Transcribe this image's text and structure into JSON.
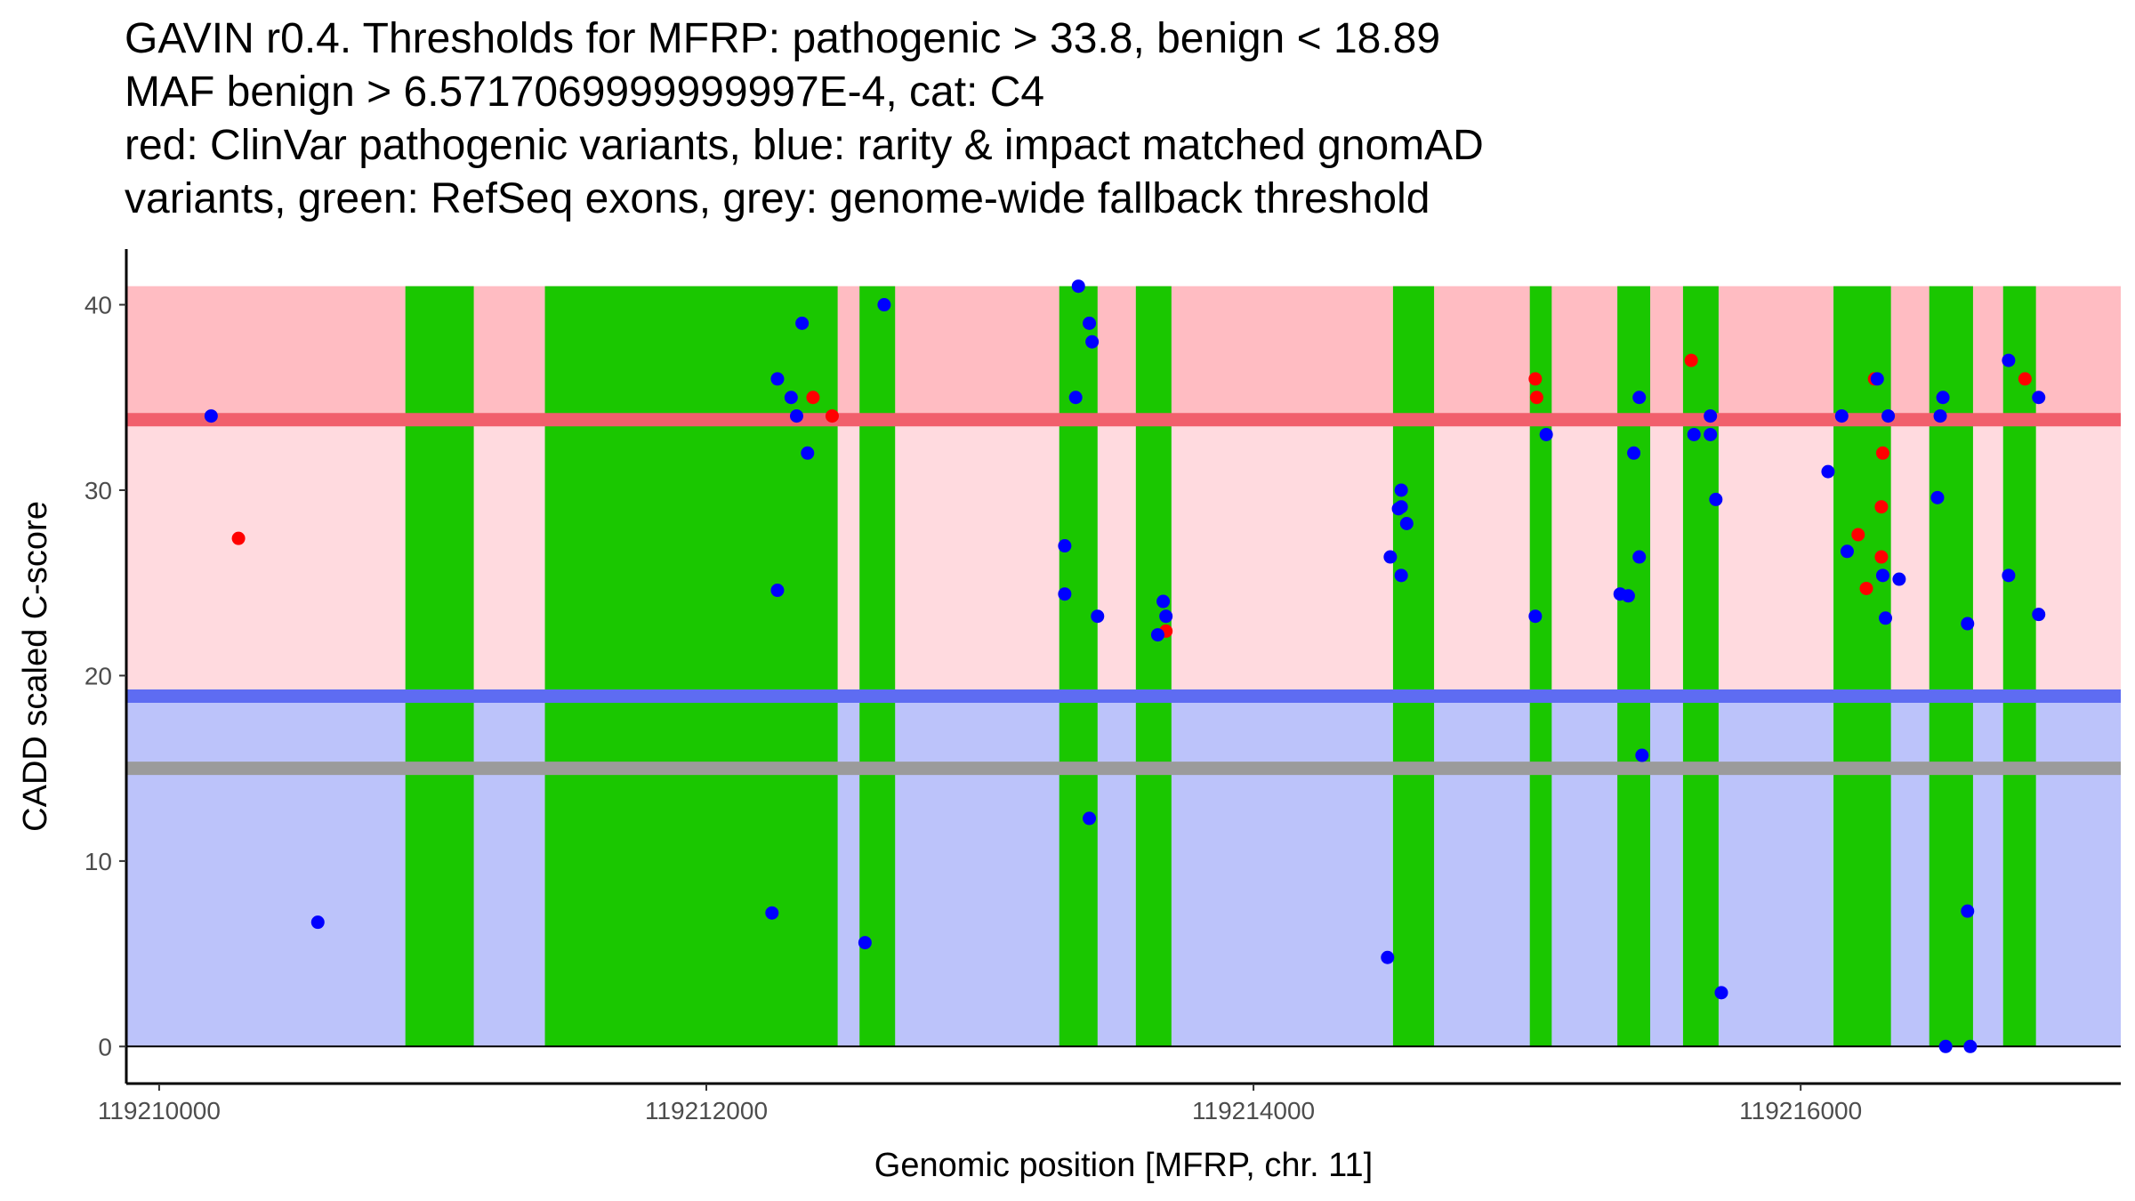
{
  "chart_data": {
    "type": "scatter",
    "title_lines": [
      "GAVIN r0.4. Thresholds for MFRP: pathogenic > 33.8, benign < 18.89",
      "MAF benign > 6.5717069999999997E-4, cat: C4",
      "red: ClinVar pathogenic variants, blue: rarity & impact matched gnomAD",
      "variants, green: RefSeq exons, grey: genome-wide fallback threshold"
    ],
    "xlabel": "Genomic position [MFRP, chr. 11]",
    "ylabel": "CADD scaled C-score",
    "xlim": [
      119209880,
      119217170
    ],
    "ylim": [
      -2,
      43
    ],
    "xticks": [
      119210000,
      119212000,
      119214000,
      119216000
    ],
    "yticks": [
      0,
      10,
      20,
      30,
      40
    ],
    "colors": {
      "pathogenic_region": "#ffbcc2",
      "middle_region": "#ffdadf",
      "benign_region": "#bcc3fa",
      "pathogenic_line": "#f15f6c",
      "benign_line": "#5e6cf2",
      "fallback_line": "#9b9b9b",
      "exon": "#1ac700",
      "clinvar_point": "#ff0000",
      "gnomad_point": "#0000ff"
    },
    "regions": {
      "y_top": 41,
      "pathogenic_threshold": 33.8,
      "benign_threshold": 18.89,
      "fallback_threshold": 15
    },
    "exons": [
      [
        119210900,
        119211150
      ],
      [
        119211410,
        119212480
      ],
      [
        119212560,
        119212690
      ],
      [
        119213290,
        119213430
      ],
      [
        119213570,
        119213700
      ],
      [
        119214510,
        119214660
      ],
      [
        119215010,
        119215090
      ],
      [
        119215330,
        119215450
      ],
      [
        119215570,
        119215700
      ],
      [
        119216120,
        119216330
      ],
      [
        119216470,
        119216630
      ],
      [
        119216740,
        119216860
      ]
    ],
    "series": [
      {
        "name": "ClinVar pathogenic variants",
        "color": "#ff0000",
        "points": [
          [
            119210290,
            27.4
          ],
          [
            119212390,
            35.0
          ],
          [
            119212460,
            34.0
          ],
          [
            119213680,
            22.4
          ],
          [
            119215030,
            36.0
          ],
          [
            119215035,
            35.0
          ],
          [
            119215600,
            37.0
          ],
          [
            119216210,
            27.6
          ],
          [
            119216240,
            24.7
          ],
          [
            119216270,
            36.0
          ],
          [
            119216300,
            32.0
          ],
          [
            119216295,
            29.1
          ],
          [
            119216295,
            26.4
          ],
          [
            119216820,
            36.0
          ]
        ]
      },
      {
        "name": "rarity & impact matched gnomAD variants",
        "color": "#0000ff",
        "points": [
          [
            119210190,
            34.0
          ],
          [
            119210580,
            6.7
          ],
          [
            119212240,
            7.2
          ],
          [
            119212260,
            36.0
          ],
          [
            119212260,
            24.6
          ],
          [
            119212310,
            35.0
          ],
          [
            119212330,
            34.0
          ],
          [
            119212350,
            39.0
          ],
          [
            119212370,
            32.0
          ],
          [
            119212580,
            5.6
          ],
          [
            119212650,
            40.0
          ],
          [
            119213310,
            27.0
          ],
          [
            119213310,
            24.4
          ],
          [
            119213350,
            35.0
          ],
          [
            119213360,
            41.0
          ],
          [
            119213400,
            39.0
          ],
          [
            119213410,
            38.0
          ],
          [
            119213400,
            12.3
          ],
          [
            119213430,
            23.2
          ],
          [
            119213650,
            22.2
          ],
          [
            119213670,
            24.0
          ],
          [
            119213680,
            23.2
          ],
          [
            119214490,
            4.8
          ],
          [
            119214500,
            26.4
          ],
          [
            119214530,
            29.0
          ],
          [
            119214540,
            30.0
          ],
          [
            119214540,
            25.4
          ],
          [
            119214560,
            28.2
          ],
          [
            119214540,
            29.1
          ],
          [
            119215030,
            23.2
          ],
          [
            119215070,
            33.0
          ],
          [
            119215340,
            24.4
          ],
          [
            119215370,
            24.3
          ],
          [
            119215390,
            32.0
          ],
          [
            119215410,
            35.0
          ],
          [
            119215410,
            26.4
          ],
          [
            119215420,
            15.7
          ],
          [
            119215610,
            33.0
          ],
          [
            119215670,
            34.0
          ],
          [
            119215670,
            33.0
          ],
          [
            119215690,
            29.5
          ],
          [
            119215710,
            2.9
          ],
          [
            119216100,
            31.0
          ],
          [
            119216150,
            34.0
          ],
          [
            119216170,
            26.7
          ],
          [
            119216280,
            36.0
          ],
          [
            119216300,
            25.4
          ],
          [
            119216310,
            23.1
          ],
          [
            119216320,
            34.0
          ],
          [
            119216360,
            25.2
          ],
          [
            119216500,
            29.6
          ],
          [
            119216510,
            34.0
          ],
          [
            119216520,
            35.0
          ],
          [
            119216530,
            0.0
          ],
          [
            119216610,
            22.8
          ],
          [
            119216610,
            7.3
          ],
          [
            119216620,
            0.0
          ],
          [
            119216760,
            37.0
          ],
          [
            119216760,
            25.4
          ],
          [
            119216870,
            35.0
          ],
          [
            119216870,
            23.3
          ]
        ]
      }
    ]
  }
}
